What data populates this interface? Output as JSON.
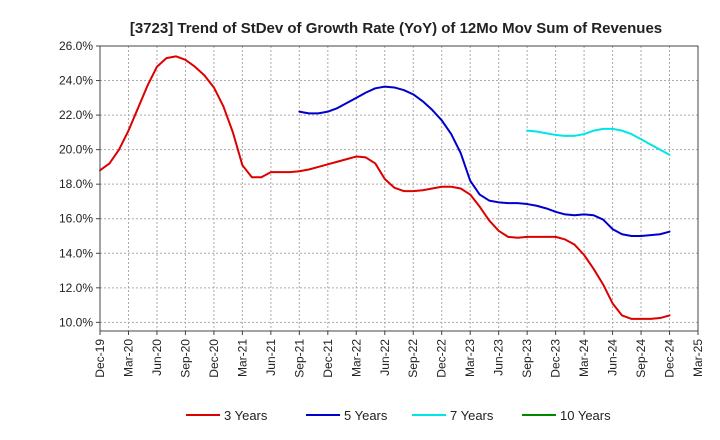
{
  "chart_data": {
    "type": "line",
    "title": "[3723]  Trend of StDev of Growth Rate (YoY) of 12Mo Mov Sum of Revenues",
    "xlabel": "",
    "ylabel": "",
    "ylim": [
      9.5,
      26.0
    ],
    "y_ticks": [
      10.0,
      12.0,
      14.0,
      16.0,
      18.0,
      20.0,
      22.0,
      24.0,
      26.0
    ],
    "y_tick_labels": [
      "10.0%",
      "12.0%",
      "14.0%",
      "16.0%",
      "18.0%",
      "20.0%",
      "22.0%",
      "24.0%",
      "26.0%"
    ],
    "x_tick_labels": [
      "Dec-19",
      "Mar-20",
      "Jun-20",
      "Sep-20",
      "Dec-20",
      "Mar-21",
      "Jun-21",
      "Sep-21",
      "Dec-21",
      "Mar-22",
      "Jun-22",
      "Sep-22",
      "Dec-22",
      "Mar-23",
      "Jun-23",
      "Sep-23",
      "Dec-23",
      "Mar-24",
      "Jun-24",
      "Sep-24",
      "Dec-24",
      "Mar-25"
    ],
    "x_count_months": 63,
    "grid": true,
    "legend_position": "bottom",
    "series": [
      {
        "name": "3 Years",
        "color": "#dd0000",
        "start_month": 0,
        "values": [
          18.8,
          19.2,
          20.0,
          21.1,
          22.4,
          23.7,
          24.8,
          25.3,
          25.4,
          25.2,
          24.8,
          24.3,
          23.6,
          22.5,
          21.0,
          19.1,
          18.4,
          18.4,
          18.7,
          18.7,
          18.7,
          18.75,
          18.85,
          19.0,
          19.15,
          19.3,
          19.45,
          19.6,
          19.55,
          19.2,
          18.3,
          17.8,
          17.6,
          17.6,
          17.65,
          17.75,
          17.85,
          17.85,
          17.75,
          17.4,
          16.7,
          15.9,
          15.3,
          14.95,
          14.9,
          14.95,
          14.95,
          14.95,
          14.95,
          14.8,
          14.5,
          13.9,
          13.1,
          12.2,
          11.1,
          10.4,
          10.2,
          10.2,
          10.2,
          10.25,
          10.4
        ]
      },
      {
        "name": "5 Years",
        "color": "#0000cc",
        "start_month": 21,
        "values": [
          22.2,
          22.1,
          22.1,
          22.2,
          22.4,
          22.7,
          23.0,
          23.3,
          23.55,
          23.65,
          23.6,
          23.45,
          23.2,
          22.8,
          22.3,
          21.7,
          20.9,
          19.8,
          18.2,
          17.4,
          17.05,
          16.95,
          16.9,
          16.9,
          16.85,
          16.75,
          16.6,
          16.4,
          16.25,
          16.2,
          16.25,
          16.2,
          15.95,
          15.4,
          15.1,
          15.0,
          15.0,
          15.05,
          15.1,
          15.25
        ]
      },
      {
        "name": "7 Years",
        "color": "#00e5e5",
        "start_month": 45,
        "values": [
          21.1,
          21.05,
          20.95,
          20.85,
          20.8,
          20.8,
          20.9,
          21.1,
          21.2,
          21.2,
          21.1,
          20.9,
          20.6,
          20.3,
          20.0,
          19.7
        ]
      },
      {
        "name": "10 Years",
        "color": "#008800",
        "start_month": 60,
        "values": []
      }
    ]
  }
}
